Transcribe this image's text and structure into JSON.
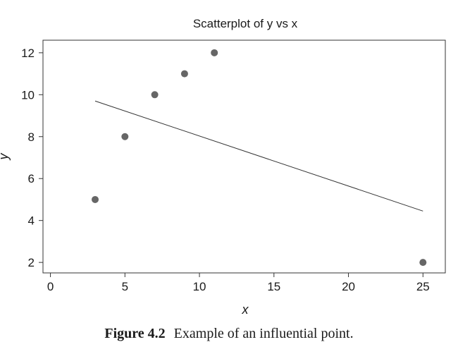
{
  "chart_data": {
    "type": "scatter",
    "title": "Scatterplot of y vs x",
    "xlabel": "x",
    "ylabel": "y",
    "xlim": [
      -0.5,
      26.5
    ],
    "ylim": [
      1.5,
      12.6
    ],
    "xticks": [
      0,
      5,
      10,
      15,
      20,
      25
    ],
    "yticks": [
      2,
      4,
      6,
      8,
      10,
      12
    ],
    "grid": false,
    "points": [
      {
        "x": 3,
        "y": 5
      },
      {
        "x": 5,
        "y": 8
      },
      {
        "x": 7,
        "y": 10
      },
      {
        "x": 9,
        "y": 11
      },
      {
        "x": 11,
        "y": 12
      },
      {
        "x": 25,
        "y": 2
      }
    ],
    "fit_line": {
      "x": [
        3,
        25
      ],
      "y": [
        9.7,
        4.45
      ]
    },
    "colors": {
      "point": "#666666",
      "line": "#333333",
      "frame": "#333333"
    }
  },
  "caption": {
    "label": "Figure 4.2",
    "text": "Example of an influential point."
  }
}
